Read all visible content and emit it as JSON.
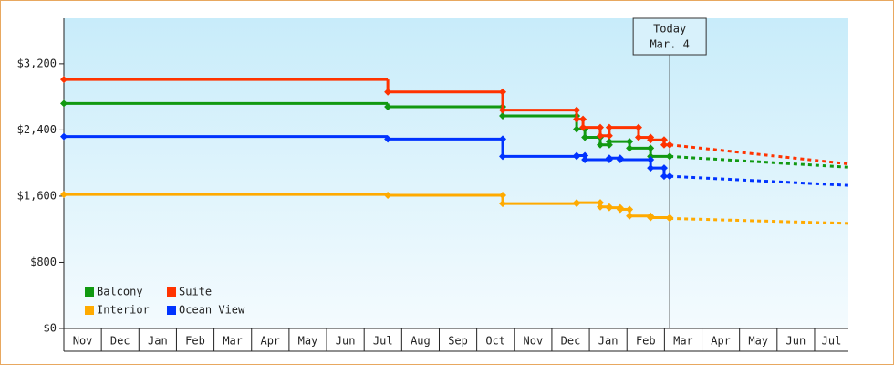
{
  "chart_data": {
    "type": "step",
    "categories": [
      "Nov",
      "Dec",
      "Jan",
      "Feb",
      "Mar",
      "Apr",
      "May",
      "Jun",
      "Jul",
      "Aug",
      "Sep",
      "Oct",
      "Nov",
      "Dec",
      "Jan",
      "Feb",
      "Mar",
      "Apr",
      "May",
      "Jun",
      "Jul"
    ],
    "xlim": [
      0,
      20.9
    ],
    "ylim": [
      0,
      3750
    ],
    "yticks": [
      {
        "value": 0,
        "label": "$0"
      },
      {
        "value": 800,
        "label": "$800"
      },
      {
        "value": 1600,
        "label": "$1,600"
      },
      {
        "value": 2400,
        "label": "$2,400"
      },
      {
        "value": 3200,
        "label": "$3,200"
      }
    ],
    "annotation": {
      "x": 16.14,
      "lines": [
        "Today",
        "Mar. 4"
      ]
    },
    "series": [
      {
        "name": "Balcony",
        "color": "#119911",
        "x": [
          0,
          8.63,
          11.69,
          13.66,
          13.88,
          14.29,
          14.53,
          15.07,
          15.63,
          16.14
        ],
        "values": [
          2720,
          2680,
          2570,
          2410,
          2310,
          2220,
          2260,
          2180,
          2080,
          2080
        ],
        "projection": {
          "x": [
            16.14,
            20.9
          ],
          "values": [
            2080,
            1950
          ]
        }
      },
      {
        "name": "Suite",
        "color": "#ff3300",
        "x": [
          0,
          8.63,
          11.69,
          13.66,
          13.83,
          14.29,
          14.53,
          15.31,
          15.63,
          15.99,
          16.14
        ],
        "values": [
          3010,
          2860,
          2640,
          2530,
          2430,
          2330,
          2430,
          2310,
          2280,
          2220,
          2220
        ],
        "projection": {
          "x": [
            16.14,
            20.9
          ],
          "values": [
            2220,
            1990
          ]
        }
      },
      {
        "name": "Interior",
        "color": "#ffaa00",
        "x": [
          0,
          8.63,
          11.69,
          13.66,
          14.29,
          14.53,
          14.82,
          15.07,
          15.63,
          16.14
        ],
        "values": [
          1620,
          1610,
          1510,
          1520,
          1470,
          1460,
          1440,
          1360,
          1340,
          1330
        ],
        "projection": {
          "x": [
            16.14,
            20.9
          ],
          "values": [
            1330,
            1270
          ]
        }
      },
      {
        "name": "Ocean View",
        "color": "#0033ff",
        "x": [
          0,
          8.63,
          11.69,
          13.66,
          13.88,
          14.53,
          14.82,
          15.63,
          15.99,
          16.14
        ],
        "values": [
          2320,
          2290,
          2080,
          2090,
          2040,
          2060,
          2040,
          1940,
          1840,
          1840
        ],
        "projection": {
          "x": [
            16.14,
            20.9
          ],
          "values": [
            1840,
            1730
          ]
        }
      }
    ]
  }
}
